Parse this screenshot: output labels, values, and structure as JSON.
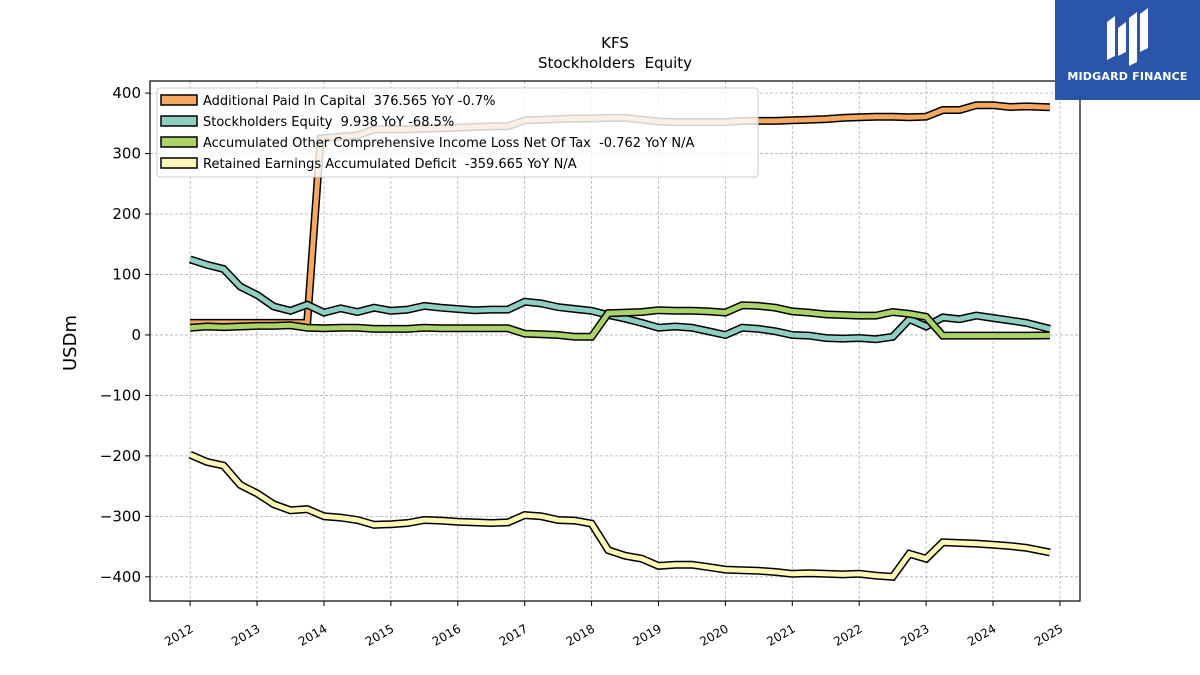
{
  "brand": {
    "name": "MIDGARD FINANCE",
    "logo_icon": "midgard-logo-icon",
    "color": "#2a55a8"
  },
  "chart_data": {
    "type": "line",
    "title": "KFS",
    "subtitle": "Stockholders  Equity",
    "xlabel": "",
    "ylabel": "USDm",
    "xlim": [
      2011.4,
      2025.3
    ],
    "ylim": [
      -440,
      420
    ],
    "x_ticks": [
      "2012",
      "2013",
      "2014",
      "2015",
      "2016",
      "2017",
      "2018",
      "2019",
      "2020",
      "2021",
      "2022",
      "2023",
      "2024",
      "2025"
    ],
    "y_ticks": [
      "400",
      "300",
      "200",
      "100",
      "0",
      "−100",
      "−200",
      "−300",
      "−400"
    ],
    "y_tick_values": [
      400,
      300,
      200,
      100,
      0,
      -100,
      -200,
      -300,
      -400
    ],
    "grid": true,
    "legend_position": "top-left",
    "series": [
      {
        "name": "Additional Paid In Capital  376.565 YoY -0.7%",
        "color": "#f5a862",
        "points": [
          [
            2012.0,
            20
          ],
          [
            2012.25,
            20
          ],
          [
            2012.5,
            20
          ],
          [
            2012.75,
            20
          ],
          [
            2013.0,
            20
          ],
          [
            2013.25,
            20
          ],
          [
            2013.5,
            20
          ],
          [
            2013.75,
            20
          ],
          [
            2013.95,
            325
          ],
          [
            2014.25,
            328
          ],
          [
            2014.5,
            330
          ],
          [
            2014.75,
            340
          ],
          [
            2015.0,
            340
          ],
          [
            2015.25,
            340
          ],
          [
            2015.5,
            341
          ],
          [
            2015.75,
            342
          ],
          [
            2016.0,
            343
          ],
          [
            2016.25,
            344
          ],
          [
            2016.5,
            345
          ],
          [
            2016.75,
            345
          ],
          [
            2017.0,
            355
          ],
          [
            2017.25,
            356
          ],
          [
            2017.5,
            357
          ],
          [
            2017.75,
            358
          ],
          [
            2018.0,
            358
          ],
          [
            2018.25,
            359
          ],
          [
            2018.5,
            359
          ],
          [
            2018.75,
            356
          ],
          [
            2019.0,
            353
          ],
          [
            2019.25,
            352
          ],
          [
            2019.5,
            352
          ],
          [
            2019.75,
            352
          ],
          [
            2020.0,
            352
          ],
          [
            2020.25,
            354
          ],
          [
            2020.5,
            354
          ],
          [
            2020.75,
            354
          ],
          [
            2021.0,
            355
          ],
          [
            2021.25,
            356
          ],
          [
            2021.5,
            357
          ],
          [
            2021.75,
            359
          ],
          [
            2022.0,
            360
          ],
          [
            2022.25,
            361
          ],
          [
            2022.5,
            361
          ],
          [
            2022.75,
            360
          ],
          [
            2023.0,
            361
          ],
          [
            2023.25,
            372
          ],
          [
            2023.5,
            372
          ],
          [
            2023.75,
            380
          ],
          [
            2024.0,
            380
          ],
          [
            2024.25,
            377
          ],
          [
            2024.5,
            378
          ],
          [
            2024.85,
            376.565
          ]
        ]
      },
      {
        "name": "Stockholders Equity  9.938 YoY -68.5%",
        "color": "#8ecfc2",
        "points": [
          [
            2012.0,
            125
          ],
          [
            2012.25,
            116
          ],
          [
            2012.5,
            109
          ],
          [
            2012.75,
            80
          ],
          [
            2013.0,
            66
          ],
          [
            2013.25,
            47
          ],
          [
            2013.5,
            40
          ],
          [
            2013.75,
            50
          ],
          [
            2014.0,
            37
          ],
          [
            2014.25,
            44
          ],
          [
            2014.5,
            38
          ],
          [
            2014.75,
            45
          ],
          [
            2015.0,
            40
          ],
          [
            2015.25,
            42
          ],
          [
            2015.5,
            48
          ],
          [
            2015.75,
            45
          ],
          [
            2016.0,
            43
          ],
          [
            2016.25,
            41
          ],
          [
            2016.5,
            42
          ],
          [
            2016.75,
            42
          ],
          [
            2017.0,
            55
          ],
          [
            2017.25,
            52
          ],
          [
            2017.5,
            46
          ],
          [
            2017.75,
            43
          ],
          [
            2018.0,
            40
          ],
          [
            2018.25,
            33
          ],
          [
            2018.5,
            27
          ],
          [
            2018.75,
            20
          ],
          [
            2019.0,
            12
          ],
          [
            2019.25,
            14
          ],
          [
            2019.5,
            12
          ],
          [
            2019.75,
            6
          ],
          [
            2020.0,
            0
          ],
          [
            2020.25,
            12
          ],
          [
            2020.5,
            10
          ],
          [
            2020.75,
            6
          ],
          [
            2021.0,
            0
          ],
          [
            2021.25,
            -1
          ],
          [
            2021.5,
            -5
          ],
          [
            2021.75,
            -6
          ],
          [
            2022.0,
            -5
          ],
          [
            2022.25,
            -7
          ],
          [
            2022.5,
            -3
          ],
          [
            2022.75,
            26
          ],
          [
            2023.0,
            14
          ],
          [
            2023.25,
            29
          ],
          [
            2023.5,
            26
          ],
          [
            2023.75,
            32
          ],
          [
            2024.0,
            28
          ],
          [
            2024.25,
            24
          ],
          [
            2024.5,
            20
          ],
          [
            2024.85,
            9.938
          ]
        ]
      },
      {
        "name": "Accumulated Other Comprehensive Income Loss Net Of Tax  -0.762 YoY N/A",
        "color": "#acd36a",
        "points": [
          [
            2012.0,
            12
          ],
          [
            2012.25,
            14
          ],
          [
            2012.5,
            13
          ],
          [
            2012.75,
            14
          ],
          [
            2013.0,
            15
          ],
          [
            2013.25,
            15
          ],
          [
            2013.5,
            16
          ],
          [
            2013.75,
            12
          ],
          [
            2014.0,
            11
          ],
          [
            2014.25,
            12
          ],
          [
            2014.5,
            12
          ],
          [
            2014.75,
            10
          ],
          [
            2015.0,
            10
          ],
          [
            2015.25,
            10
          ],
          [
            2015.5,
            12
          ],
          [
            2015.75,
            11
          ],
          [
            2016.0,
            11
          ],
          [
            2016.25,
            11
          ],
          [
            2016.5,
            11
          ],
          [
            2016.75,
            11
          ],
          [
            2017.0,
            2
          ],
          [
            2017.25,
            1
          ],
          [
            2017.5,
            0
          ],
          [
            2017.75,
            -3
          ],
          [
            2018.0,
            -3
          ],
          [
            2018.25,
            36
          ],
          [
            2018.5,
            37
          ],
          [
            2018.75,
            38
          ],
          [
            2019.0,
            41
          ],
          [
            2019.25,
            40
          ],
          [
            2019.5,
            40
          ],
          [
            2019.75,
            39
          ],
          [
            2020.0,
            37
          ],
          [
            2020.25,
            49
          ],
          [
            2020.5,
            48
          ],
          [
            2020.75,
            45
          ],
          [
            2021.0,
            39
          ],
          [
            2021.25,
            37
          ],
          [
            2021.5,
            34
          ],
          [
            2021.75,
            33
          ],
          [
            2022.0,
            32
          ],
          [
            2022.25,
            32
          ],
          [
            2022.5,
            38
          ],
          [
            2022.75,
            35
          ],
          [
            2023.0,
            30
          ],
          [
            2023.25,
            -1
          ],
          [
            2023.5,
            -1
          ],
          [
            2023.75,
            -1
          ],
          [
            2024.0,
            -1
          ],
          [
            2024.25,
            -1
          ],
          [
            2024.5,
            -1
          ],
          [
            2024.85,
            -0.762
          ]
        ]
      },
      {
        "name": "Retained Earnings Accumulated Deficit  -359.665 YoY N/A",
        "color": "#fdf8b8",
        "points": [
          [
            2012.0,
            -198
          ],
          [
            2012.25,
            -210
          ],
          [
            2012.5,
            -216
          ],
          [
            2012.75,
            -248
          ],
          [
            2013.0,
            -262
          ],
          [
            2013.25,
            -280
          ],
          [
            2013.5,
            -290
          ],
          [
            2013.75,
            -288
          ],
          [
            2014.0,
            -300
          ],
          [
            2014.25,
            -302
          ],
          [
            2014.5,
            -306
          ],
          [
            2014.75,
            -314
          ],
          [
            2015.0,
            -313
          ],
          [
            2015.25,
            -311
          ],
          [
            2015.5,
            -306
          ],
          [
            2015.75,
            -307
          ],
          [
            2016.0,
            -309
          ],
          [
            2016.25,
            -310
          ],
          [
            2016.5,
            -311
          ],
          [
            2016.75,
            -310
          ],
          [
            2017.0,
            -298
          ],
          [
            2017.25,
            -300
          ],
          [
            2017.5,
            -306
          ],
          [
            2017.75,
            -307
          ],
          [
            2018.0,
            -312
          ],
          [
            2018.25,
            -356
          ],
          [
            2018.5,
            -365
          ],
          [
            2018.75,
            -370
          ],
          [
            2019.0,
            -382
          ],
          [
            2019.25,
            -380
          ],
          [
            2019.5,
            -380
          ],
          [
            2019.75,
            -384
          ],
          [
            2020.0,
            -388
          ],
          [
            2020.25,
            -389
          ],
          [
            2020.5,
            -390
          ],
          [
            2020.75,
            -392
          ],
          [
            2021.0,
            -395
          ],
          [
            2021.25,
            -394
          ],
          [
            2021.5,
            -395
          ],
          [
            2021.75,
            -396
          ],
          [
            2022.0,
            -395
          ],
          [
            2022.25,
            -398
          ],
          [
            2022.5,
            -400
          ],
          [
            2022.75,
            -362
          ],
          [
            2023.0,
            -370
          ],
          [
            2023.25,
            -343
          ],
          [
            2023.5,
            -344
          ],
          [
            2023.75,
            -345
          ],
          [
            2024.0,
            -347
          ],
          [
            2024.25,
            -349
          ],
          [
            2024.5,
            -352
          ],
          [
            2024.85,
            -359.665
          ]
        ]
      }
    ]
  }
}
